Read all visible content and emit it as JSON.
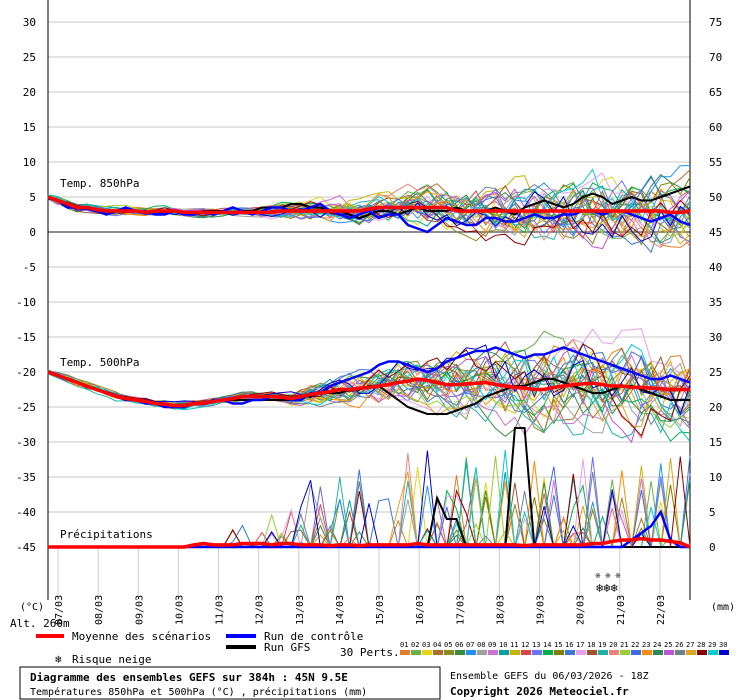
{
  "chart_data": {
    "type": "line",
    "title": "Diagramme des ensembles GEFS sur 384h : 45N 9.5E",
    "subtitle": "Températures 850hPa et 500hPa (°C) , précipitations (mm)",
    "run_info": "Ensemble GEFS du 06/03/2026 - 18Z",
    "copyright": "Copyright 2026 Meteociel.fr",
    "altitude_label": "Alt. 260m",
    "left_unit": "(°C)",
    "right_unit": "(mm)",
    "left_axis": {
      "min": -45,
      "max": 30,
      "step": 5,
      "ticks": [
        "30",
        "25",
        "20",
        "15",
        "10",
        "5",
        "0",
        "-5",
        "-10",
        "-15",
        "-20",
        "-25",
        "-30",
        "-35",
        "-40",
        "-45"
      ]
    },
    "right_axis": {
      "min": 0,
      "max": 75,
      "step": 5,
      "ticks": [
        "75",
        "70",
        "65",
        "60",
        "55",
        "50",
        "45",
        "40",
        "35",
        "30",
        "25",
        "20",
        "15",
        "10",
        "5",
        "0"
      ]
    },
    "x_labels": [
      "07/03",
      "08/03",
      "09/03",
      "10/03",
      "11/03",
      "12/03",
      "13/03",
      "14/03",
      "15/03",
      "16/03",
      "17/03",
      "18/03",
      "19/03",
      "20/03",
      "21/03",
      "22/03"
    ],
    "x_range_hours": [
      0,
      384
    ],
    "section_labels": {
      "t850": "Temp. 850hPa",
      "t500": "Temp. 500hPa",
      "precip": "Précipitations"
    },
    "legend": {
      "mean": "Moyenne des scénarios",
      "control": "Run de contrôle",
      "gfs": "Run GFS",
      "snow": "Risque neige",
      "perts": "30 Perts."
    },
    "pert_labels": [
      "01",
      "02",
      "03",
      "04",
      "05",
      "06",
      "07",
      "08",
      "09",
      "10",
      "11",
      "12",
      "13",
      "14",
      "15",
      "16",
      "17",
      "18",
      "19",
      "20",
      "21",
      "22",
      "23",
      "24",
      "25",
      "26",
      "27",
      "28",
      "29",
      "30"
    ],
    "pert_colors": [
      "#e07c2c",
      "#6ab04c",
      "#e8d414",
      "#b06f2c",
      "#8a8a20",
      "#3a8a3a",
      "#1e90ff",
      "#a0a0a0",
      "#d070d0",
      "#00a0a0",
      "#c8b400",
      "#d44",
      "#7070ff",
      "#00b050",
      "#808000",
      "#3c78d8",
      "#e8a0e8",
      "#a0522d",
      "#20b2aa",
      "#f08080",
      "#9acd32",
      "#4169e1",
      "#ff8c00",
      "#2e8b57",
      "#ba55d3",
      "#708090",
      "#daa520",
      "#8b0000",
      "#00ced1",
      "#0000cd"
    ],
    "series": [
      {
        "name": "Moyenne des scénarios",
        "color": "#ff0000",
        "t850": [
          5,
          4.5,
          4,
          3.5,
          3.5,
          3.2,
          3,
          3,
          3,
          3,
          2.8,
          3,
          3,
          3,
          2.8,
          2.8,
          2.8,
          2.8,
          2.8,
          2.8,
          2.8,
          2.8,
          2.8,
          2.8,
          3,
          3,
          3,
          3,
          3,
          3,
          3,
          3,
          3,
          3.3,
          3.5,
          3.5,
          3.5,
          3.5,
          3.5,
          3.5,
          3.5,
          3.5,
          3,
          3,
          3,
          3,
          3,
          3,
          3,
          3,
          3,
          3,
          3,
          3,
          3,
          3,
          3,
          3,
          3,
          3,
          3,
          3,
          3,
          3,
          2.8,
          2.8,
          3
        ],
        "t500": [
          -20,
          -20.5,
          -21,
          -21.5,
          -22,
          -22.5,
          -23,
          -23.5,
          -23.8,
          -24,
          -24.2,
          -24.5,
          -24.6,
          -24.8,
          -24.8,
          -24.5,
          -24.5,
          -24.2,
          -24,
          -23.8,
          -23.5,
          -23.5,
          -23.5,
          -23.5,
          -23.6,
          -23.8,
          -23.5,
          -23.2,
          -23,
          -22.8,
          -22.5,
          -22.5,
          -22.3,
          -22.2,
          -22,
          -21.8,
          -21.5,
          -21.3,
          -21,
          -21.2,
          -21.5,
          -21.8,
          -21.8,
          -21.7,
          -21.6,
          -21.5,
          -21.8,
          -22,
          -22.2,
          -22.3,
          -22.5,
          -22.5,
          -22.2,
          -22,
          -21.8,
          -21.7,
          -21.6,
          -21.8,
          -22,
          -22,
          -22.2,
          -22.2,
          -22.3,
          -22.4,
          -22.5,
          -22.5,
          -22.5
        ],
        "precip": [
          0,
          0,
          0,
          0,
          0,
          0,
          0,
          0,
          0,
          0,
          0,
          0,
          0,
          0,
          0,
          0.3,
          0.5,
          0.3,
          0.3,
          0.3,
          0.5,
          0.5,
          0.5,
          0.3,
          0.5,
          0.5,
          0.3,
          0.3,
          0.3,
          0.2,
          0.3,
          0.3,
          0.2,
          0.3,
          0.3,
          0.3,
          0.3,
          0.3,
          0.5,
          0.3,
          0.3,
          0.3,
          0.3,
          0.3,
          0.3,
          0.3,
          0.3,
          0.3,
          0.3,
          0.2,
          0.3,
          0.3,
          0.3,
          0.3,
          0.3,
          0.3,
          0.5,
          0.5,
          0.8,
          1,
          1,
          1.2,
          1,
          1,
          0.8,
          0.6,
          0
        ]
      },
      {
        "name": "Run de contrôle",
        "color": "#0000ff",
        "t850": [
          5,
          4.5,
          3.5,
          3.5,
          3.5,
          3,
          2.5,
          3,
          3.5,
          3,
          3,
          2.5,
          2.5,
          3,
          2.5,
          2.5,
          3,
          2.5,
          3,
          3.5,
          3,
          2.5,
          3,
          3.5,
          3.5,
          3,
          3,
          3.5,
          4,
          3,
          2.5,
          2,
          2.5,
          3,
          2,
          2.5,
          2.5,
          1,
          0.5,
          0,
          1,
          2,
          1.5,
          1,
          1,
          2,
          2,
          1.5,
          1.5,
          2,
          2.5,
          2,
          2,
          2.5,
          2.5,
          3,
          3,
          2.5,
          3,
          3,
          2.5,
          2,
          1.5,
          2,
          2.5,
          1.5,
          1
        ],
        "t500": [
          -20,
          -20.5,
          -21,
          -21.5,
          -22,
          -22.5,
          -23,
          -23.5,
          -24,
          -24,
          -24.5,
          -24.5,
          -25,
          -25,
          -25,
          -24.5,
          -24.5,
          -24,
          -24,
          -24.5,
          -24.5,
          -24,
          -24,
          -23.5,
          -23.5,
          -24,
          -24,
          -23,
          -23,
          -22,
          -21.5,
          -21,
          -20.5,
          -20,
          -19,
          -18.5,
          -18.5,
          -19,
          -19.5,
          -20,
          -19.5,
          -18.5,
          -18,
          -17.5,
          -17,
          -17,
          -16.5,
          -17,
          -17.5,
          -18,
          -17.5,
          -17.5,
          -17,
          -16.5,
          -17,
          -17.5,
          -18,
          -18.5,
          -19,
          -19.5,
          -20,
          -20.5,
          -21,
          -21,
          -20.5,
          -21,
          -21.5
        ],
        "precip": [
          0,
          0,
          0,
          0,
          0,
          0,
          0,
          0,
          0,
          0,
          0,
          0,
          0,
          0,
          0,
          0,
          0,
          0,
          0,
          0,
          0,
          0,
          0,
          0,
          0,
          0,
          0,
          0,
          0,
          0,
          0,
          0,
          0,
          0,
          0,
          0,
          0,
          0,
          0,
          0,
          0,
          0,
          0,
          0,
          0,
          0,
          0,
          0,
          0,
          0,
          0,
          0,
          0,
          0,
          0,
          0,
          0,
          0,
          0,
          0,
          1,
          2,
          3,
          5,
          1,
          0,
          0
        ]
      },
      {
        "name": "Run GFS",
        "color": "#000000",
        "t850": [
          5,
          4.5,
          3.5,
          3.5,
          3.5,
          3,
          2.5,
          3,
          3,
          3,
          3,
          2.5,
          2.5,
          3,
          2.5,
          2.5,
          3,
          3,
          3,
          3.5,
          3,
          3,
          3.5,
          3.5,
          3.5,
          4,
          4,
          3.5,
          3.5,
          3,
          3,
          2.5,
          2,
          2.5,
          3,
          3,
          2.5,
          3,
          3.5,
          3,
          3,
          3,
          3.5,
          3,
          3,
          3,
          3.5,
          3,
          2.5,
          3.5,
          4,
          4.5,
          4,
          3.5,
          4,
          5,
          5.5,
          5,
          4,
          4.5,
          5,
          4.5,
          4.5,
          5,
          5.5,
          6,
          6.5
        ],
        "t500": [
          -20,
          -20.5,
          -21,
          -21.5,
          -22,
          -22.5,
          -23,
          -23.5,
          -24,
          -24,
          -24.5,
          -24.5,
          -25,
          -25,
          -25,
          -24.5,
          -24.5,
          -24,
          -24,
          -24,
          -24,
          -24,
          -24,
          -24,
          -24,
          -24,
          -23.5,
          -23.5,
          -23,
          -23,
          -23,
          -22.5,
          -22.5,
          -22,
          -22,
          -23,
          -24,
          -25,
          -25.5,
          -26,
          -26,
          -26,
          -25.5,
          -25,
          -24.5,
          -23.5,
          -23,
          -22.5,
          -22,
          -22,
          -21.5,
          -21,
          -21,
          -21.5,
          -22,
          -22.5,
          -23,
          -23,
          -22.5,
          -22,
          -22,
          -22.5,
          -23,
          -23.5,
          -24,
          -24,
          -24
        ],
        "precip": [
          0,
          0,
          0,
          0,
          0,
          0,
          0,
          0,
          0,
          0,
          0,
          0,
          0,
          0,
          0,
          0,
          0,
          0,
          0,
          0,
          0,
          0,
          0,
          0,
          0,
          0,
          0,
          0,
          0,
          0,
          0,
          0,
          0,
          0,
          0,
          0,
          0,
          0,
          0,
          0,
          7,
          4,
          4,
          0,
          0,
          0,
          0,
          0,
          17,
          17,
          0,
          0,
          0,
          0,
          0,
          0,
          0,
          0,
          0,
          0,
          0,
          0,
          0,
          0,
          0,
          0,
          0
        ]
      }
    ]
  }
}
